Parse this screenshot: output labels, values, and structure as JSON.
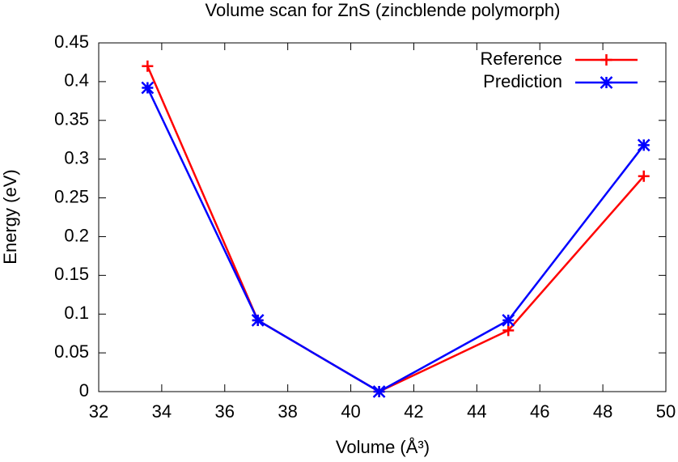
{
  "chart_data": {
    "type": "line",
    "title": "Volume scan for ZnS (zincblende polymorph)",
    "xlabel": "Volume (Å³)",
    "ylabel": "Energy (eV)",
    "x": [
      33.55,
      37.05,
      40.9,
      45.0,
      49.3
    ],
    "series": [
      {
        "name": "Reference",
        "color": "#ff0000",
        "marker": "plus",
        "values": [
          0.42,
          0.092,
          0.0,
          0.079,
          0.278
        ]
      },
      {
        "name": "Prediction",
        "color": "#0000ff",
        "marker": "star",
        "values": [
          0.392,
          0.092,
          0.0,
          0.092,
          0.318
        ]
      }
    ],
    "xlim": [
      32,
      50
    ],
    "xticks": [
      32,
      34,
      36,
      38,
      40,
      42,
      44,
      46,
      48,
      50
    ],
    "ylim": [
      0,
      0.45
    ],
    "yticks": [
      0,
      0.05,
      0.1,
      0.15,
      0.2,
      0.25,
      0.3,
      0.35,
      0.4,
      0.45
    ],
    "grid": false,
    "legend": "top-right"
  }
}
